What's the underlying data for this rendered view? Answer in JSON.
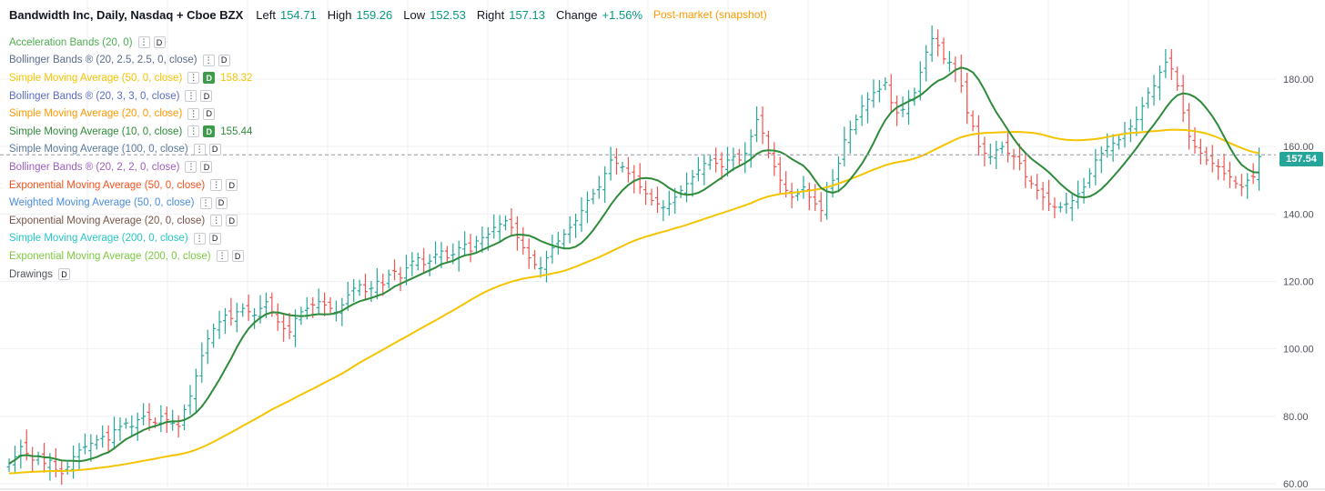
{
  "header": {
    "symbol": "Bandwidth Inc, Daily, Nasdaq + Cboe BZX",
    "left_label": "Left",
    "left_value": "154.71",
    "high_label": "High",
    "high_value": "159.26",
    "low_label": "Low",
    "low_value": "152.53",
    "right_label": "Right",
    "right_value": "157.13",
    "change_label": "Change",
    "change_value": "+1.56%",
    "post_market": "Post-market (snapshot)"
  },
  "indicators": [
    {
      "label": "Acceleration Bands (20, 0)",
      "color": "#4caf50",
      "menu": "⋮",
      "d": "D",
      "active": false,
      "value": ""
    },
    {
      "label": "Bollinger Bands ® (20, 2.5, 2.5, 0, close)",
      "color": "#5b6b8c",
      "menu": "⋮",
      "d": "D",
      "active": false,
      "value": ""
    },
    {
      "label": "Simple Moving Average (50, 0, close)",
      "color": "#f5c400",
      "menu": "⋮",
      "d": "D",
      "active": true,
      "value": "158.32"
    },
    {
      "label": "Bollinger Bands ® (20, 3, 3, 0, close)",
      "color": "#5c6bc0",
      "menu": "⋮",
      "d": "D",
      "active": false,
      "value": ""
    },
    {
      "label": "Simple Moving Average (20, 0, close)",
      "color": "#ff9800",
      "menu": "⋮",
      "d": "D",
      "active": false,
      "value": ""
    },
    {
      "label": "Simple Moving Average (10, 0, close)",
      "color": "#2e8b3a",
      "menu": "⋮",
      "d": "D",
      "active": true,
      "value": "155.44"
    },
    {
      "label": "Simple Moving Average (100, 0, close)",
      "color": "#5b7a9c",
      "menu": "⋮",
      "d": "D",
      "active": false,
      "value": ""
    },
    {
      "label": "Bollinger Bands ® (20, 2, 2, 0, close)",
      "color": "#9c5fc0",
      "menu": "⋮",
      "d": "D",
      "active": false,
      "value": ""
    },
    {
      "label": "Exponential Moving Average (50, 0, close)",
      "color": "#f4511e",
      "menu": "⋮",
      "d": "D",
      "active": false,
      "value": ""
    },
    {
      "label": "Weighted Moving Average (50, 0, close)",
      "color": "#4a8ce0",
      "menu": "⋮",
      "d": "D",
      "active": false,
      "value": ""
    },
    {
      "label": "Exponential Moving Average (20, 0, close)",
      "color": "#795548",
      "menu": "⋮",
      "d": "D",
      "active": false,
      "value": ""
    },
    {
      "label": "Simple Moving Average (200, 0, close)",
      "color": "#26c6c6",
      "menu": "⋮",
      "d": "D",
      "active": false,
      "value": ""
    },
    {
      "label": "Exponential Moving Average (200, 0, close)",
      "color": "#7cc940",
      "menu": "⋮",
      "d": "D",
      "active": false,
      "value": ""
    },
    {
      "label": "Drawings",
      "color": "#50535e",
      "menu": "",
      "d": "D",
      "active": false,
      "value": ""
    }
  ],
  "price_tag": "157.54",
  "colors": {
    "up": "#26a69a",
    "down": "#ef5350",
    "sma50": "#f5c400",
    "sma10": "#2e8b3a",
    "grid": "#eef0f3"
  },
  "chart_data": {
    "type": "candlestick",
    "y_ticks": [
      "180.00",
      "160.00",
      "140.00",
      "120.00",
      "100.00",
      "80.00",
      "60.00"
    ],
    "ylim": [
      58,
      200
    ],
    "current_price": 157.54,
    "close": [
      66,
      68,
      71,
      69,
      67,
      68,
      66,
      67,
      64,
      63,
      65,
      68,
      70,
      71,
      72,
      73,
      74,
      73,
      76,
      77,
      78,
      77,
      79,
      80,
      79,
      78,
      80,
      79,
      78,
      77,
      82,
      86,
      92,
      98,
      103,
      106,
      108,
      110,
      109,
      111,
      112,
      111,
      110,
      112,
      114,
      111,
      108,
      106,
      105,
      109,
      111,
      112,
      113,
      114,
      113,
      112,
      111,
      113,
      116,
      118,
      119,
      117,
      118,
      120,
      119,
      122,
      123,
      121,
      124,
      126,
      127,
      125,
      126,
      128,
      129,
      127,
      128,
      130,
      131,
      129,
      132,
      133,
      134,
      136,
      137,
      138,
      136,
      133,
      130,
      127,
      125,
      124,
      127,
      130,
      132,
      134,
      136,
      138,
      141,
      144,
      146,
      148,
      152,
      156,
      155,
      154,
      152,
      150,
      148,
      146,
      144,
      143,
      142,
      143,
      145,
      147,
      149,
      151,
      153,
      155,
      156,
      155,
      154,
      156,
      157,
      156,
      158,
      163,
      168,
      164,
      158,
      154,
      150,
      147,
      145,
      146,
      148,
      145,
      143,
      141,
      148,
      150,
      155,
      162,
      165,
      168,
      172,
      174,
      176,
      177,
      179,
      173,
      170,
      171,
      174,
      176,
      182,
      188,
      192,
      190,
      186,
      185,
      183,
      178,
      170,
      166,
      160,
      158,
      157,
      159,
      160,
      158,
      157,
      155,
      151,
      149,
      147,
      145,
      143,
      142,
      142,
      143,
      144,
      146,
      148,
      152,
      156,
      158,
      160,
      161,
      162,
      164,
      166,
      168,
      172,
      176,
      178,
      182,
      185,
      183,
      178,
      170,
      163,
      160,
      158,
      156,
      155,
      154,
      152,
      151,
      149,
      148,
      150,
      151,
      157
    ]
  }
}
